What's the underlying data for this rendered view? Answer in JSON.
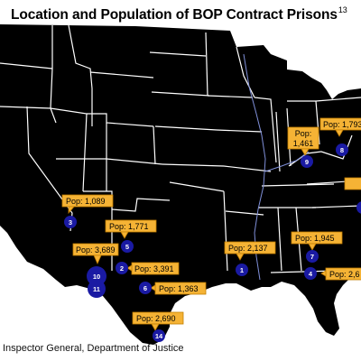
{
  "title": "Location and Population of BOP Contract Prisons",
  "footnote": "13",
  "source": "Inspector General, Department of Justice",
  "colors": {
    "land": "#c8c8c8",
    "state_border": "#ffffff",
    "callout_fill": "#f5b335",
    "callout_border": "#c47f00",
    "marker_fill": "#1a1aa3",
    "marker_text": "#ffffff",
    "river": "#7f8fd8"
  },
  "prisons": [
    {
      "id": "1",
      "pop": "Pop: 2,137"
    },
    {
      "id": "2",
      "pop": "Pop: 3,391"
    },
    {
      "id": "3",
      "pop": "Pop: 1,089"
    },
    {
      "id": "4",
      "pop": "Pop: 2,6"
    },
    {
      "id": "5",
      "pop": "Pop: 1,771"
    },
    {
      "id": "6",
      "pop": "Pop: 1,363"
    },
    {
      "id": "7",
      "pop": "Pop: 1,945"
    },
    {
      "id": "8",
      "pop": "Pop: 1,793"
    },
    {
      "id": "9",
      "pop": "Pop:\n1,461"
    },
    {
      "id": "10",
      "pop": "Pop: 3,689"
    },
    {
      "id": "11",
      "pop": ""
    },
    {
      "id": "14",
      "pop": "Pop: 2,690"
    }
  ]
}
